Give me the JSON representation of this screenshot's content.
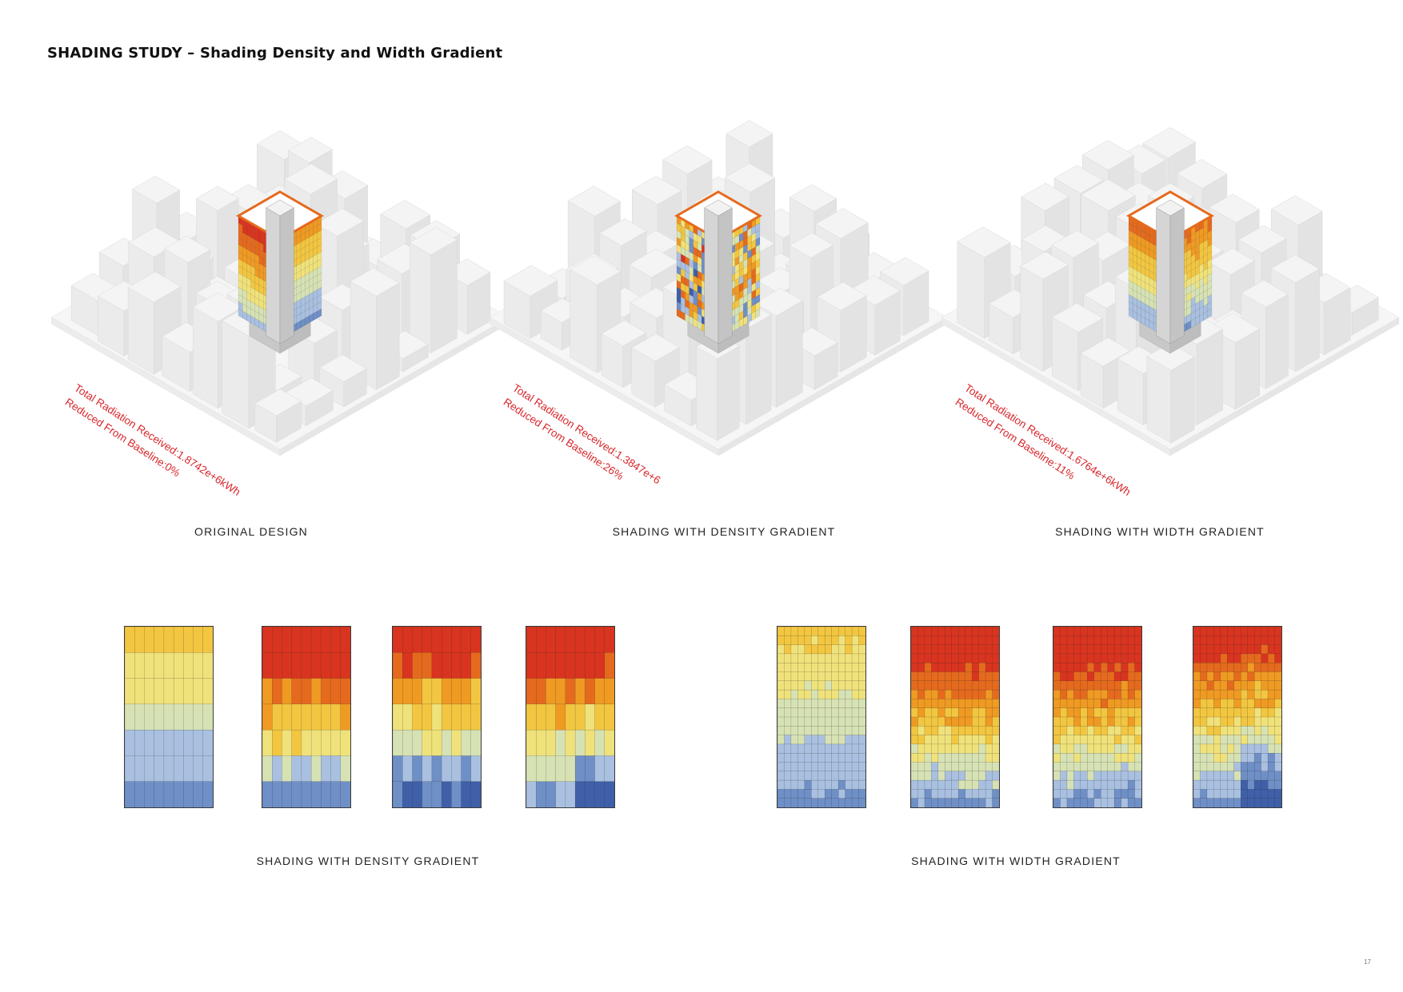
{
  "page": {
    "title": "SHADING STUDY – Shading Density and Width Gradient",
    "page_number": "17"
  },
  "studies": [
    {
      "caption": "ORIGINAL DESIGN",
      "radiation": "Total Radiation Received:1.8742e+6kWh",
      "reduction": "Reduced From Baseline:0%",
      "pattern": "original"
    },
    {
      "caption": "SHADING WITH DENSITY GRADIENT",
      "radiation": "Total Radiation Received:1.3847e+6",
      "reduction": "Reduced From Baseline:26%",
      "pattern": "density"
    },
    {
      "caption": "SHADING WITH WIDTH GRADIENT",
      "radiation": "Total Radiation Received:1.6764e+6kWh",
      "reduction": "Reduced From Baseline:11%",
      "pattern": "width"
    }
  ],
  "facade_groups": [
    {
      "caption": "SHADING WITH DENSITY GRADIENT",
      "panel_count": 4
    },
    {
      "caption": "SHADING WITH WIDTH GRADIENT",
      "panel_count": 4
    }
  ],
  "colors": {
    "annotation": "#d9262b",
    "radiation_scale": [
      "#3f5fa8",
      "#6f8fc7",
      "#a9c0e0",
      "#d7e2b4",
      "#f0e27a",
      "#f2c640",
      "#ef9a22",
      "#e56a1d",
      "#d9341f"
    ],
    "context_building": "#eeeeee"
  }
}
